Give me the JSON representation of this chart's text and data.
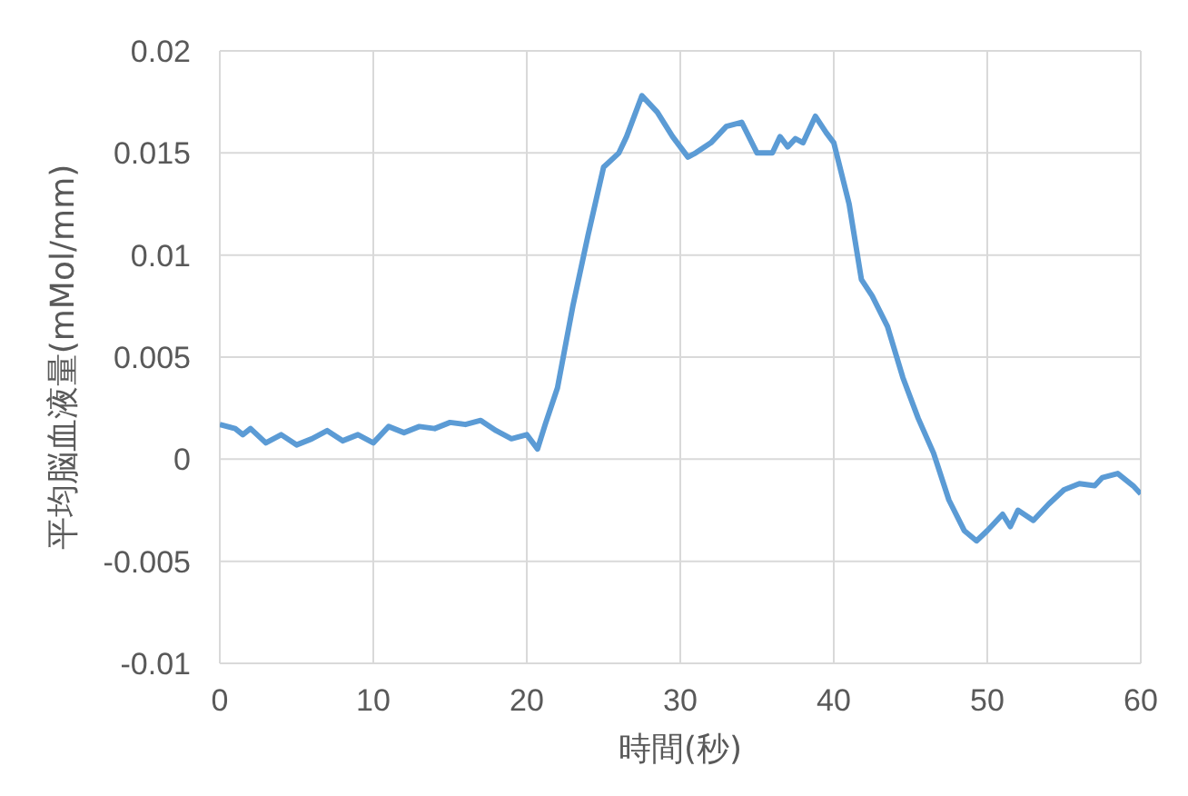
{
  "chart_data": {
    "type": "line",
    "xlabel": "時間(秒)",
    "ylabel": "平均脳血液量(mMol/mm)",
    "x": [
      0,
      1,
      1.5,
      2,
      3,
      4,
      5,
      6,
      7,
      8,
      9,
      10,
      11,
      12,
      13,
      14,
      15,
      16,
      17,
      18,
      19,
      20,
      20.7,
      21.2,
      22,
      23,
      24,
      25,
      26,
      26.5,
      27.5,
      28.5,
      29.5,
      30.5,
      31,
      32,
      33,
      34,
      35,
      36,
      36.5,
      37,
      37.5,
      38,
      38.8,
      39.5,
      40,
      41,
      41.8,
      42.5,
      43.5,
      44.5,
      45.5,
      46.5,
      47.5,
      48.5,
      49.3,
      50,
      51,
      51.5,
      52,
      53,
      54,
      55,
      56,
      57,
      57.5,
      58.5,
      59.5,
      60
    ],
    "series": [
      {
        "color": "#5b9bd5",
        "values": [
          0.0017,
          0.0015,
          0.0012,
          0.0015,
          0.0008,
          0.0012,
          0.0007,
          0.001,
          0.0014,
          0.0009,
          0.0012,
          0.0008,
          0.0016,
          0.0013,
          0.0016,
          0.0015,
          0.0018,
          0.0017,
          0.0019,
          0.0014,
          0.001,
          0.0012,
          0.0005,
          0.0017,
          0.0035,
          0.0075,
          0.011,
          0.0143,
          0.015,
          0.0158,
          0.0178,
          0.017,
          0.0158,
          0.0148,
          0.015,
          0.0155,
          0.0163,
          0.0165,
          0.015,
          0.015,
          0.0158,
          0.0153,
          0.0157,
          0.0155,
          0.0168,
          0.016,
          0.0155,
          0.0125,
          0.0088,
          0.008,
          0.0065,
          0.004,
          0.002,
          0.0003,
          -0.002,
          -0.0035,
          -0.004,
          -0.0035,
          -0.0027,
          -0.0033,
          -0.0025,
          -0.003,
          -0.0022,
          -0.0015,
          -0.0012,
          -0.0013,
          -0.0009,
          -0.0007,
          -0.0013,
          -0.0017
        ]
      }
    ],
    "xlim": [
      0,
      60
    ],
    "xticks": [
      0,
      10,
      20,
      30,
      40,
      50,
      60
    ],
    "ylim": [
      -0.01,
      0.02
    ],
    "yticks": [
      -0.01,
      -0.005,
      0,
      0.005,
      0.01,
      0.015,
      0.02
    ],
    "grid": true,
    "legend": false,
    "marker": "none",
    "line_style": "solid"
  }
}
